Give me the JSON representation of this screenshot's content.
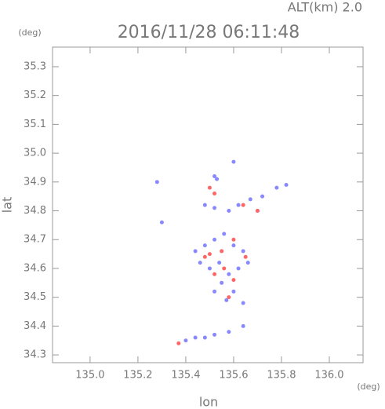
{
  "chart_data": {
    "type": "scatter",
    "title": "2016/11/28 06:11:48",
    "subtitle": "ALT(km) 2.0",
    "x_label": "lon",
    "y_label": "lat",
    "x_unit": "(deg)",
    "y_unit": "(deg)",
    "xlim": [
      134.843,
      136.141
    ],
    "ylim": [
      34.273,
      35.368
    ],
    "xticks": [
      {
        "value": 135,
        "label": "135.0"
      },
      135.2,
      135.4,
      135.6,
      135.8,
      {
        "value": 136,
        "label": "136.0"
      }
    ],
    "yticks": [
      34.3,
      34.4,
      34.5,
      34.6,
      34.7,
      34.8,
      34.9,
      {
        "value": 35,
        "label": "35.0"
      },
      35.1,
      35.2,
      35.3
    ],
    "series": [
      {
        "color": "#8888ff",
        "x": [
          135.52,
          135.53,
          135.6,
          135.28,
          135.48,
          135.52,
          135.58,
          135.62,
          135.67,
          135.72,
          135.78,
          135.82,
          135.7,
          135.3,
          135.44,
          135.48,
          135.52,
          135.56,
          135.6,
          135.64,
          135.46,
          135.5,
          135.54,
          135.58,
          135.62,
          135.66,
          135.55,
          135.6,
          135.64,
          135.57,
          135.52,
          135.4,
          135.44,
          135.48,
          135.52,
          135.58,
          135.64
        ],
        "y": [
          34.92,
          34.91,
          34.97,
          34.9,
          34.82,
          34.81,
          34.8,
          34.82,
          34.84,
          34.85,
          34.88,
          34.89,
          34.8,
          34.76,
          34.66,
          34.68,
          34.7,
          34.72,
          34.68,
          34.66,
          34.62,
          34.6,
          34.62,
          34.58,
          34.6,
          34.62,
          34.55,
          34.52,
          34.48,
          34.49,
          34.52,
          34.35,
          34.36,
          34.36,
          34.37,
          34.38,
          34.4
        ]
      },
      {
        "color": "#ff6666",
        "x": [
          135.5,
          135.52,
          135.64,
          135.7,
          135.55,
          135.6,
          135.48,
          135.52,
          135.56,
          135.6,
          135.58,
          135.5,
          135.65,
          135.37
        ],
        "y": [
          34.88,
          34.86,
          34.82,
          34.8,
          34.66,
          34.7,
          34.64,
          34.58,
          34.6,
          34.56,
          34.5,
          34.65,
          34.64,
          34.34
        ]
      }
    ]
  }
}
